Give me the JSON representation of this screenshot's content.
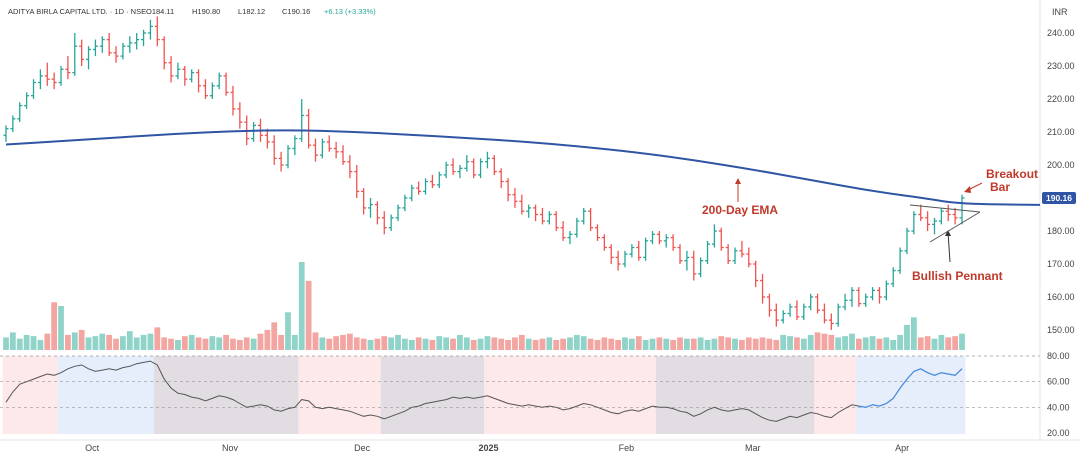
{
  "header": {
    "symbol": "ADITYA BIRLA CAPITAL LTD. · 1D · NSE",
    "open": "O184.11",
    "high": "H190.80",
    "low": "L182.12",
    "close": "C190.16",
    "change": "+6.13 (+3.33%)"
  },
  "currency": "INR",
  "last_price_label": "190.16",
  "colors": {
    "up": "#26a69a",
    "down": "#ef5350",
    "ema": "#2f55a4",
    "annotation": "#c0392b",
    "rsi_line": "#555555",
    "rsi_highlight_green": "#4a8fe7",
    "vol_up": "#8fd3c9",
    "vol_down": "#f3a6a1",
    "price_label_bg": "#2f55a4"
  },
  "chart_data": {
    "type": "candlestick",
    "timeframe": "1D",
    "price_axis": {
      "min": 145,
      "max": 245,
      "ticks": [
        "240.00",
        "230.00",
        "220.00",
        "210.00",
        "200.00",
        "190.00",
        "180.00",
        "170.00",
        "160.00",
        "150.00"
      ]
    },
    "rsi_axis": {
      "min": 20,
      "max": 85,
      "ticks": [
        "80.00",
        "60.00",
        "40.00",
        "20.00"
      ]
    },
    "x_labels": [
      "Oct",
      "Nov",
      "Dec",
      "2025",
      "Feb",
      "Mar",
      "Apr"
    ],
    "ohlc": [
      [
        209,
        212,
        207,
        211
      ],
      [
        211,
        215,
        210,
        214
      ],
      [
        214,
        219,
        213,
        218
      ],
      [
        218,
        222,
        217,
        221
      ],
      [
        221,
        226,
        220,
        225
      ],
      [
        225,
        229,
        223,
        227
      ],
      [
        227,
        231,
        224,
        226
      ],
      [
        226,
        228,
        223,
        225
      ],
      [
        225,
        230,
        224,
        229
      ],
      [
        229,
        233,
        226,
        228
      ],
      [
        228,
        240,
        227,
        236
      ],
      [
        236,
        238,
        230,
        232
      ],
      [
        232,
        236,
        229,
        235
      ],
      [
        235,
        238,
        233,
        236
      ],
      [
        236,
        239,
        234,
        238
      ],
      [
        238,
        240,
        233,
        234
      ],
      [
        234,
        236,
        231,
        233
      ],
      [
        233,
        237,
        232,
        236
      ],
      [
        236,
        239,
        234,
        237
      ],
      [
        237,
        240,
        235,
        238
      ],
      [
        238,
        241,
        236,
        240
      ],
      [
        240,
        244,
        238,
        242
      ],
      [
        242,
        245,
        236,
        238
      ],
      [
        238,
        239,
        229,
        231
      ],
      [
        231,
        233,
        225,
        227
      ],
      [
        227,
        231,
        226,
        229
      ],
      [
        229,
        230,
        224,
        226
      ],
      [
        226,
        229,
        225,
        228
      ],
      [
        228,
        229,
        222,
        224
      ],
      [
        224,
        226,
        220,
        221
      ],
      [
        221,
        225,
        220,
        224
      ],
      [
        224,
        228,
        223,
        227
      ],
      [
        227,
        228,
        221,
        222
      ],
      [
        222,
        224,
        215,
        217
      ],
      [
        217,
        219,
        211,
        213
      ],
      [
        213,
        215,
        206,
        208
      ],
      [
        208,
        213,
        207,
        212
      ],
      [
        212,
        214,
        207,
        209
      ],
      [
        209,
        211,
        205,
        207
      ],
      [
        207,
        209,
        200,
        202
      ],
      [
        202,
        204,
        198,
        200
      ],
      [
        200,
        206,
        199,
        205
      ],
      [
        205,
        209,
        203,
        208
      ],
      [
        208,
        220,
        207,
        215
      ],
      [
        215,
        217,
        205,
        206
      ],
      [
        206,
        208,
        201,
        203
      ],
      [
        203,
        208,
        202,
        207
      ],
      [
        207,
        209,
        204,
        205
      ],
      [
        205,
        207,
        202,
        204
      ],
      [
        204,
        206,
        200,
        201
      ],
      [
        201,
        203,
        196,
        198
      ],
      [
        198,
        200,
        190,
        192
      ],
      [
        192,
        193,
        185,
        187
      ],
      [
        187,
        190,
        184,
        188
      ],
      [
        188,
        189,
        182,
        184
      ],
      [
        184,
        186,
        179,
        181
      ],
      [
        181,
        185,
        180,
        184
      ],
      [
        184,
        188,
        183,
        187
      ],
      [
        187,
        191,
        186,
        190
      ],
      [
        190,
        194,
        189,
        193
      ],
      [
        193,
        195,
        191,
        192
      ],
      [
        192,
        196,
        191,
        195
      ],
      [
        195,
        197,
        193,
        194
      ],
      [
        194,
        198,
        193,
        197
      ],
      [
        197,
        201,
        196,
        200
      ],
      [
        200,
        202,
        197,
        198
      ],
      [
        198,
        200,
        196,
        199
      ],
      [
        199,
        203,
        198,
        201
      ],
      [
        201,
        202,
        196,
        197
      ],
      [
        197,
        202,
        196,
        201
      ],
      [
        201,
        204,
        199,
        202
      ],
      [
        202,
        203,
        197,
        198
      ],
      [
        198,
        199,
        193,
        195
      ],
      [
        195,
        196,
        189,
        191
      ],
      [
        191,
        193,
        187,
        189
      ],
      [
        189,
        191,
        185,
        186
      ],
      [
        186,
        188,
        184,
        187
      ],
      [
        187,
        188,
        183,
        185
      ],
      [
        185,
        187,
        182,
        183
      ],
      [
        183,
        186,
        182,
        185
      ],
      [
        185,
        186,
        180,
        181
      ],
      [
        181,
        183,
        177,
        178
      ],
      [
        178,
        180,
        176,
        179
      ],
      [
        179,
        184,
        178,
        183
      ],
      [
        183,
        187,
        182,
        186
      ],
      [
        186,
        187,
        180,
        181
      ],
      [
        181,
        182,
        177,
        178
      ],
      [
        178,
        179,
        174,
        175
      ],
      [
        175,
        176,
        170,
        172
      ],
      [
        172,
        174,
        168,
        170
      ],
      [
        170,
        174,
        169,
        173
      ],
      [
        173,
        176,
        172,
        175
      ],
      [
        175,
        177,
        171,
        172
      ],
      [
        172,
        178,
        171,
        177
      ],
      [
        177,
        180,
        176,
        179
      ],
      [
        179,
        180,
        176,
        177
      ],
      [
        177,
        179,
        175,
        178
      ],
      [
        178,
        179,
        174,
        175
      ],
      [
        175,
        176,
        170,
        171
      ],
      [
        171,
        174,
        168,
        172
      ],
      [
        172,
        174,
        165,
        167
      ],
      [
        167,
        172,
        166,
        171
      ],
      [
        171,
        177,
        170,
        176
      ],
      [
        176,
        182,
        175,
        180
      ],
      [
        180,
        181,
        174,
        175
      ],
      [
        175,
        176,
        170,
        171
      ],
      [
        171,
        175,
        170,
        174
      ],
      [
        174,
        177,
        172,
        173
      ],
      [
        173,
        175,
        169,
        170
      ],
      [
        170,
        171,
        163,
        165
      ],
      [
        165,
        167,
        158,
        160
      ],
      [
        160,
        161,
        154,
        156
      ],
      [
        156,
        158,
        151,
        153
      ],
      [
        153,
        156,
        152,
        155
      ],
      [
        155,
        158,
        154,
        157
      ],
      [
        157,
        159,
        153,
        154
      ],
      [
        154,
        158,
        153,
        157
      ],
      [
        157,
        161,
        156,
        160
      ],
      [
        160,
        161,
        155,
        156
      ],
      [
        156,
        158,
        152,
        153
      ],
      [
        153,
        155,
        150,
        152
      ],
      [
        152,
        158,
        151,
        157
      ],
      [
        157,
        161,
        156,
        159
      ],
      [
        159,
        163,
        157,
        162
      ],
      [
        162,
        163,
        157,
        158
      ],
      [
        158,
        161,
        157,
        160
      ],
      [
        160,
        163,
        159,
        162
      ],
      [
        162,
        163,
        158,
        160
      ],
      [
        160,
        165,
        159,
        164
      ],
      [
        164,
        169,
        163,
        168
      ],
      [
        168,
        175,
        167,
        174
      ],
      [
        174,
        181,
        173,
        180
      ],
      [
        180,
        186,
        179,
        185
      ],
      [
        185,
        188,
        183,
        184
      ],
      [
        184,
        186,
        180,
        182
      ],
      [
        182,
        184,
        179,
        183
      ],
      [
        183,
        187,
        182,
        186
      ],
      [
        186,
        188,
        183,
        185
      ],
      [
        185,
        187,
        182,
        184
      ],
      [
        184,
        191,
        182,
        190
      ]
    ],
    "volume": [
      10,
      14,
      9,
      12,
      11,
      8,
      13,
      38,
      35,
      12,
      14,
      16,
      10,
      11,
      13,
      12,
      9,
      11,
      15,
      10,
      12,
      13,
      18,
      10,
      9,
      8,
      11,
      12,
      10,
      9,
      11,
      10,
      12,
      9,
      8,
      10,
      9,
      13,
      16,
      22,
      12,
      30,
      12,
      70,
      55,
      14,
      10,
      9,
      11,
      12,
      13,
      10,
      9,
      8,
      9,
      11,
      10,
      12,
      9,
      8,
      10,
      9,
      8,
      11,
      10,
      9,
      12,
      10,
      8,
      9,
      11,
      10,
      9,
      8,
      10,
      12,
      9,
      8,
      9,
      10,
      8,
      9,
      10,
      12,
      11,
      9,
      8,
      10,
      9,
      8,
      10,
      9,
      11,
      8,
      9,
      10,
      9,
      8,
      10,
      9,
      9,
      10,
      8,
      9,
      11,
      10,
      9,
      8,
      10,
      9,
      10,
      9,
      8,
      12,
      11,
      10,
      9,
      12,
      14,
      13,
      12,
      10,
      11,
      13,
      9,
      10,
      11,
      9,
      10,
      8,
      12,
      20,
      26,
      10,
      11,
      9,
      12,
      10,
      11,
      13
    ],
    "ema200": [
      [
        0,
        206.2
      ],
      [
        10,
        207.3
      ],
      [
        20,
        208.4
      ],
      [
        30,
        209.5
      ],
      [
        40,
        210.3
      ],
      [
        50,
        210.6
      ],
      [
        60,
        210.1
      ],
      [
        70,
        209.2
      ],
      [
        80,
        208.2
      ],
      [
        90,
        207.1
      ],
      [
        100,
        205.6
      ],
      [
        110,
        203.8
      ],
      [
        120,
        201.4
      ],
      [
        130,
        198.6
      ],
      [
        140,
        195.5
      ],
      [
        150,
        192.3
      ],
      [
        160,
        189.9
      ],
      [
        166,
        188.2
      ],
      [
        180,
        187.9
      ]
    ],
    "rsi": [
      44,
      52,
      58,
      60,
      62,
      64,
      66,
      65,
      67,
      70,
      72,
      73,
      70,
      68,
      69,
      70,
      69,
      71,
      72,
      74,
      75,
      76,
      73,
      62,
      55,
      51,
      50,
      48,
      47,
      45,
      47,
      49,
      48,
      46,
      43,
      40,
      41,
      42,
      41,
      38,
      37,
      39,
      40,
      46,
      45,
      40,
      39,
      40,
      39,
      38,
      37,
      35,
      33,
      34,
      33,
      31,
      33,
      35,
      37,
      40,
      41,
      43,
      44,
      45,
      46,
      48,
      47,
      48,
      47,
      48,
      49,
      47,
      45,
      43,
      42,
      41,
      42,
      41,
      40,
      41,
      40,
      38,
      39,
      41,
      43,
      42,
      40,
      38,
      36,
      35,
      37,
      38,
      37,
      39,
      41,
      40,
      40,
      39,
      37,
      36,
      33,
      35,
      38,
      40,
      38,
      37,
      38,
      39,
      38,
      35,
      32,
      30,
      29,
      31,
      33,
      32,
      34,
      36,
      35,
      33,
      32,
      36,
      39,
      42,
      41,
      40,
      42,
      41,
      43,
      47,
      55,
      62,
      68,
      70,
      67,
      65,
      67,
      66,
      65,
      70
    ],
    "annotations": {
      "ema_label": "200-Day EMA",
      "pennant_label": "Bullish Pennant",
      "breakout_line1": "Breakout",
      "breakout_line2": "Bar"
    },
    "rsi_shading": [
      {
        "from": 0,
        "to": 8,
        "color": "pink"
      },
      {
        "from": 8,
        "to": 22,
        "color": "blue"
      },
      {
        "from": 22,
        "to": 43,
        "color": "purple"
      },
      {
        "from": 43,
        "to": 55,
        "color": "pink"
      },
      {
        "from": 55,
        "to": 70,
        "color": "purple"
      },
      {
        "from": 70,
        "to": 95,
        "color": "pink"
      },
      {
        "from": 95,
        "to": 105,
        "color": "purple"
      },
      {
        "from": 105,
        "to": 118,
        "color": "purple"
      },
      {
        "from": 118,
        "to": 124,
        "color": "pink"
      },
      {
        "from": 124,
        "to": 140,
        "color": "blue"
      }
    ]
  }
}
